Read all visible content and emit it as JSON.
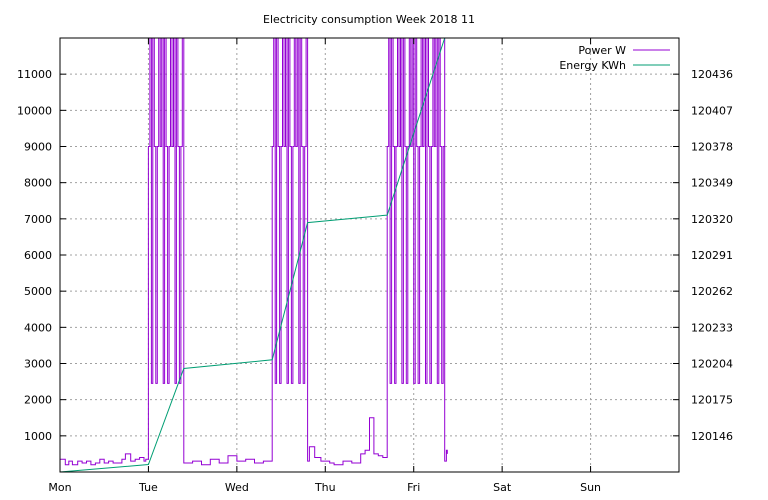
{
  "chart_data": {
    "type": "line",
    "title": "Electricity consumption Week 2018 11",
    "xlabel": "",
    "ylabel": "",
    "y2label": "",
    "x_tick_labels": [
      "Mon",
      "Tue",
      "Wed",
      "Thu",
      "Fri",
      "Sat",
      "Sun"
    ],
    "xlim": [
      0,
      7
    ],
    "ylim": [
      0,
      12000
    ],
    "y_ticks": [
      1000,
      2000,
      3000,
      4000,
      5000,
      6000,
      7000,
      8000,
      9000,
      10000,
      11000
    ],
    "y2lim": [
      120117,
      120465
    ],
    "y2_ticks": [
      120146,
      120175,
      120204,
      120233,
      120262,
      120291,
      120320,
      120349,
      120378,
      120407,
      120436
    ],
    "grid": true,
    "legend_position": "top-right",
    "series": [
      {
        "name": "Power W",
        "axis": "left",
        "color": "#9400d3",
        "x": [
          0,
          0.06,
          0.1,
          0.14,
          0.2,
          0.25,
          0.3,
          0.35,
          0.4,
          0.45,
          0.5,
          0.55,
          0.6,
          0.7,
          0.74,
          0.8,
          0.85,
          0.9,
          0.95,
          0.97
        ],
        "y": [
          350,
          200,
          300,
          200,
          300,
          250,
          300,
          200,
          250,
          350,
          250,
          300,
          250,
          350,
          500,
          300,
          350,
          400,
          300,
          350
        ],
        "bursts": [
          {
            "start": 1.0,
            "end": 1.4,
            "low": 2450,
            "mid": 9000,
            "high": 12000
          },
          {
            "start": 2.4,
            "end": 2.8,
            "low": 2450,
            "mid": 9000,
            "high": 12000
          },
          {
            "start": 3.7,
            "end": 4.35,
            "low": 2450,
            "mid": 9000,
            "high": 12000
          }
        ],
        "tail": {
          "x": [
            1.4,
            1.5,
            1.6,
            1.7,
            1.8,
            1.9,
            2.0,
            2.1,
            2.2,
            2.3,
            2.4,
            2.82,
            2.88,
            2.95,
            3.05,
            3.1,
            3.2,
            3.3,
            3.4,
            3.45,
            3.5,
            3.55,
            3.6,
            3.65
          ],
          "y": [
            250,
            300,
            200,
            350,
            250,
            450,
            300,
            350,
            250,
            300,
            250,
            700,
            400,
            300,
            250,
            200,
            300,
            250,
            500,
            600,
            1500,
            500,
            450,
            400
          ]
        }
      },
      {
        "name": "Energy KWh",
        "axis": "right",
        "color": "#009e73",
        "x": [
          0.0,
          1.0,
          1.4,
          2.4,
          2.8,
          3.7,
          4.35
        ],
        "y": [
          120117,
          120123,
          120200,
          120207,
          120317,
          120323,
          120465
        ]
      }
    ]
  }
}
